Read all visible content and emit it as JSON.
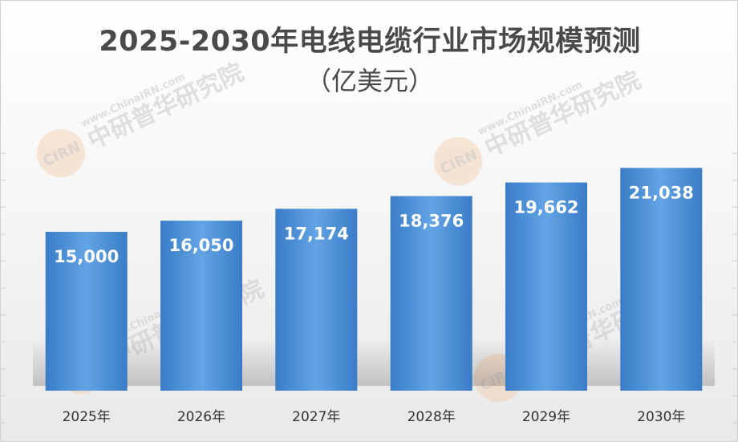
{
  "chart_data": {
    "type": "bar",
    "title": "2025-2030年电线电缆行业市场规模预测",
    "subtitle": "（亿美元）",
    "categories": [
      "2025年",
      "2026年",
      "2027年",
      "2028年",
      "2029年",
      "2030年"
    ],
    "values": [
      15000,
      16050,
      17174,
      18376,
      19662,
      21038
    ],
    "value_labels": [
      "15,000",
      "16,050",
      "17,174",
      "18,376",
      "19,662",
      "21,038"
    ],
    "xlabel": "",
    "ylabel": "",
    "ylim": [
      0,
      30000
    ],
    "grid": false,
    "legend": "none",
    "bar_color": "#4a8fd6",
    "bar_color_light": "#62a4e4",
    "bar_color_dark": "#3a7cc7"
  },
  "watermark": {
    "logo_text": "CIRN",
    "site_text": "www.ChinaIRN.com",
    "org_text": "中研普华研究院",
    "color": "#c8c8c8"
  }
}
